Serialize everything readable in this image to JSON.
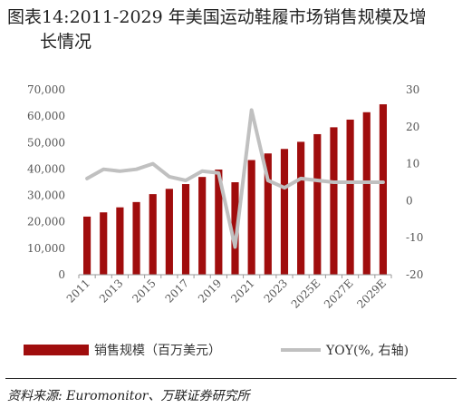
{
  "title": {
    "line1": "图表14:2011-2029  年美国运动鞋履市场销售规模及增",
    "line2": "长情况"
  },
  "legend": {
    "bar_label": "销售规模（百万美元）",
    "line_label": "YOY(%, 右轴)"
  },
  "source": "资料来源: Euromonitor、万联证券研究所",
  "colors": {
    "bar": "#a00d0d",
    "line": "#c0c0c0",
    "axis": "#999999"
  },
  "chart_data": {
    "type": "bar",
    "title": "图表14:2011-2029  年美国运动鞋履市场销售规模及增长情况",
    "categories": [
      "2011",
      "2012",
      "2013",
      "2014",
      "2015",
      "2016",
      "2017",
      "2018",
      "2019",
      "2020",
      "2021",
      "2022",
      "2023",
      "2024",
      "2025E",
      "2026E",
      "2027E",
      "2028E",
      "2029E"
    ],
    "x_tick_labels": [
      "2011",
      "2013",
      "2015",
      "2017",
      "2019",
      "2021",
      "2023",
      "2025E",
      "2027E",
      "2029E"
    ],
    "series": [
      {
        "name": "销售规模（百万美元）",
        "type": "bar",
        "axis": "left",
        "values": [
          22000,
          23600,
          25500,
          27500,
          30500,
          32500,
          34300,
          37000,
          39800,
          35000,
          43400,
          45900,
          47600,
          50300,
          53200,
          55800,
          58700,
          61500,
          64500
        ]
      },
      {
        "name": "YOY(%, 右轴)",
        "type": "line",
        "axis": "right",
        "values": [
          6.0,
          8.5,
          8.0,
          8.5,
          10.0,
          6.5,
          5.5,
          8.0,
          7.5,
          -12.5,
          24.5,
          5.5,
          3.5,
          6.0,
          5.5,
          5.0,
          5.0,
          5.0,
          5.0
        ]
      }
    ],
    "y_left": {
      "ticks": [
        0,
        10000,
        20000,
        30000,
        40000,
        50000,
        60000,
        70000
      ],
      "tick_labels": [
        "0",
        "10,000",
        "20,000",
        "30,000",
        "40,000",
        "50,000",
        "60,000",
        "70,000"
      ],
      "range": [
        0,
        70000
      ]
    },
    "y_right": {
      "ticks": [
        -20,
        -10,
        0,
        10,
        20,
        30
      ],
      "tick_labels": [
        "-20",
        "-10",
        "0",
        "10",
        "20",
        "30"
      ],
      "range": [
        -20,
        30
      ]
    },
    "grid": false,
    "legend_position": "bottom"
  }
}
